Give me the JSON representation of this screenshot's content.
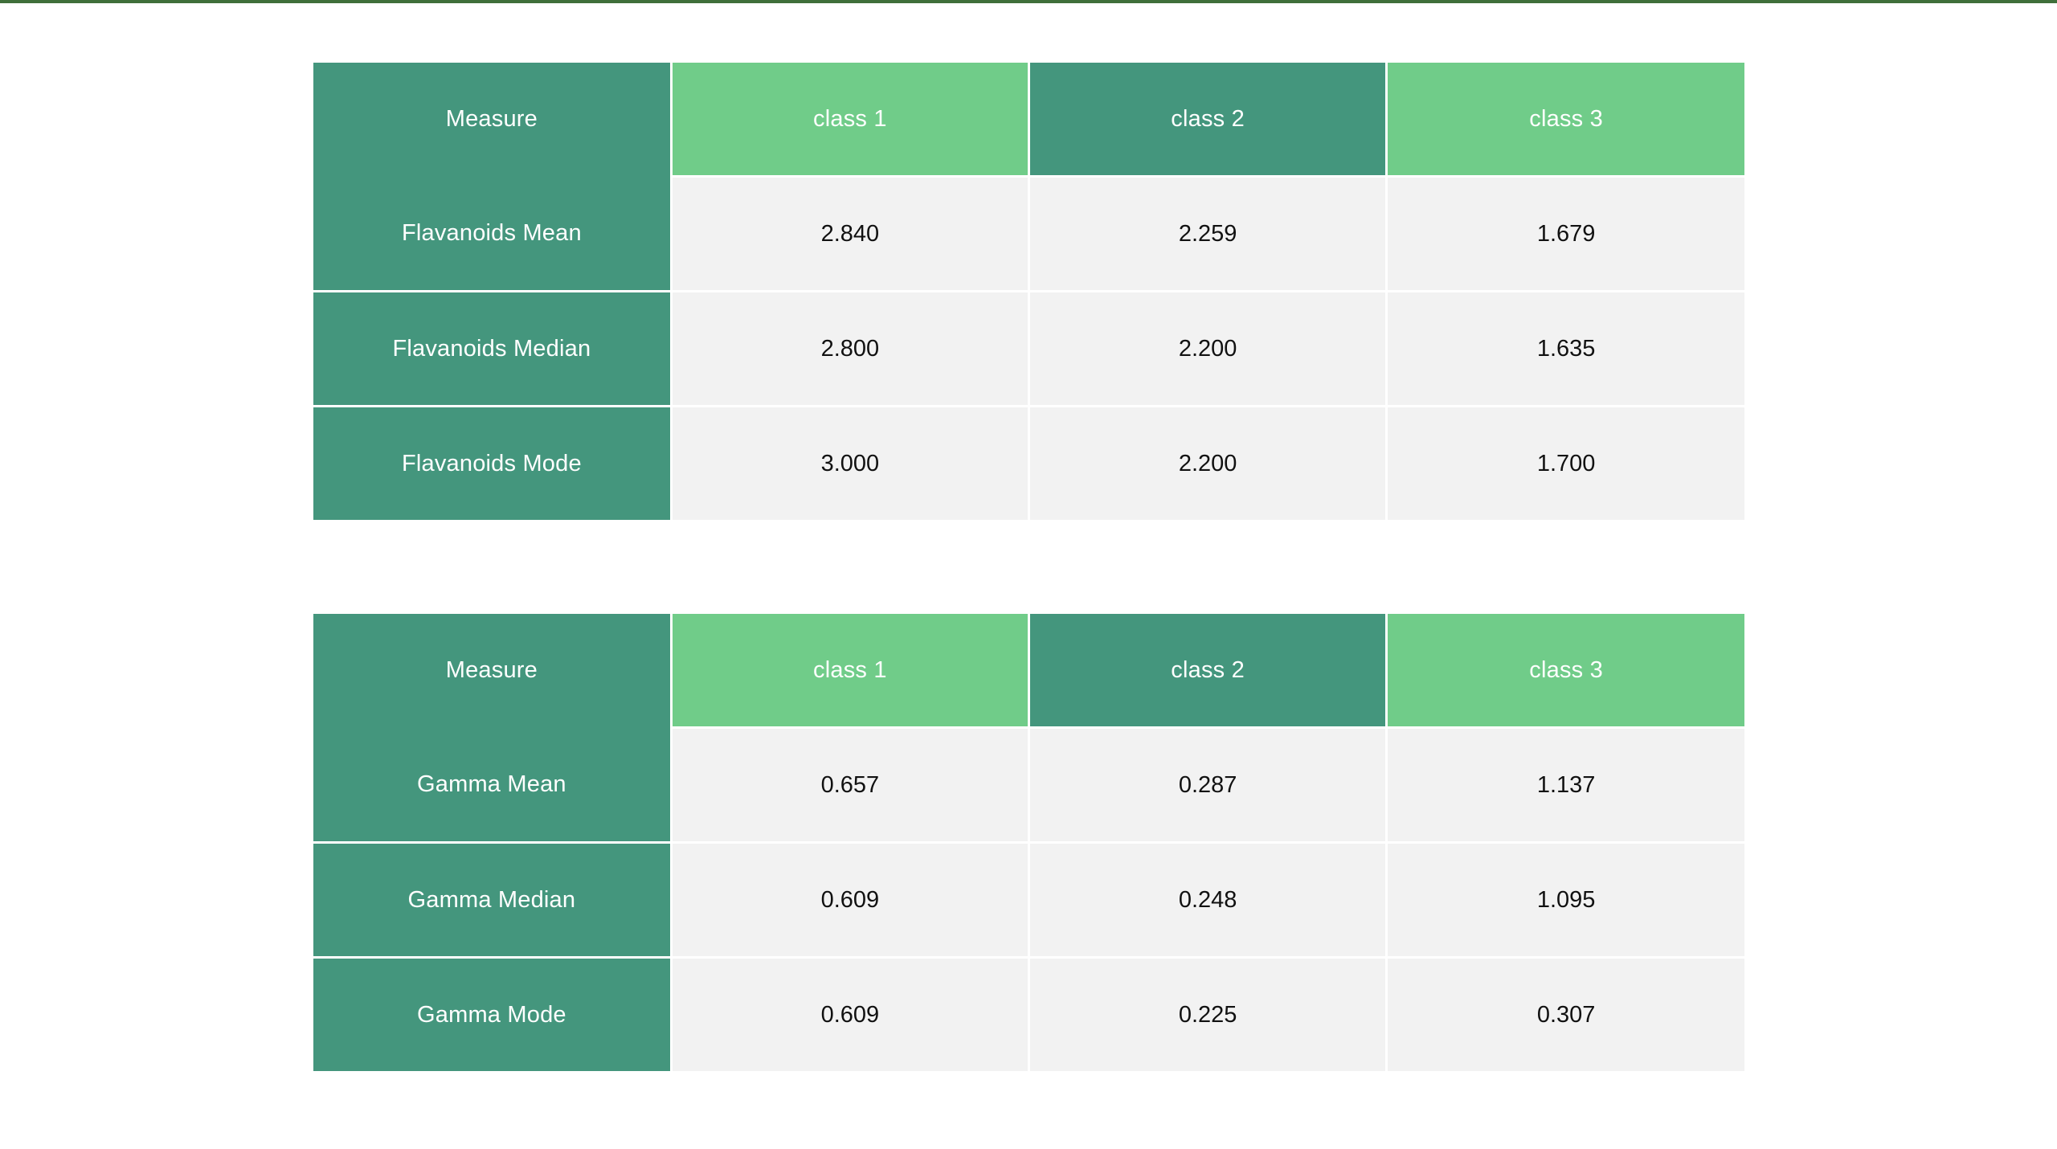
{
  "colors": {
    "accent_bar": "#3f6f3a",
    "header_dark": "#44967d",
    "header_light": "#70cc89",
    "cell_bg": "#f2f2f2"
  },
  "tables": [
    {
      "headers": [
        "Measure",
        "class 1",
        "class 2",
        "class 3"
      ],
      "rows": [
        {
          "label": "Flavanoids Mean",
          "values": [
            "2.840",
            "2.259",
            "1.679"
          ]
        },
        {
          "label": "Flavanoids Median",
          "values": [
            "2.800",
            "2.200",
            "1.635"
          ]
        },
        {
          "label": "Flavanoids Mode",
          "values": [
            "3.000",
            "2.200",
            "1.700"
          ]
        }
      ]
    },
    {
      "headers": [
        "Measure",
        "class 1",
        "class 2",
        "class 3"
      ],
      "rows": [
        {
          "label": "Gamma Mean",
          "values": [
            "0.657",
            "0.287",
            "1.137"
          ]
        },
        {
          "label": "Gamma Median",
          "values": [
            "0.609",
            "0.248",
            "1.095"
          ]
        },
        {
          "label": "Gamma Mode",
          "values": [
            "0.609",
            "0.225",
            "0.307"
          ]
        }
      ]
    }
  ]
}
